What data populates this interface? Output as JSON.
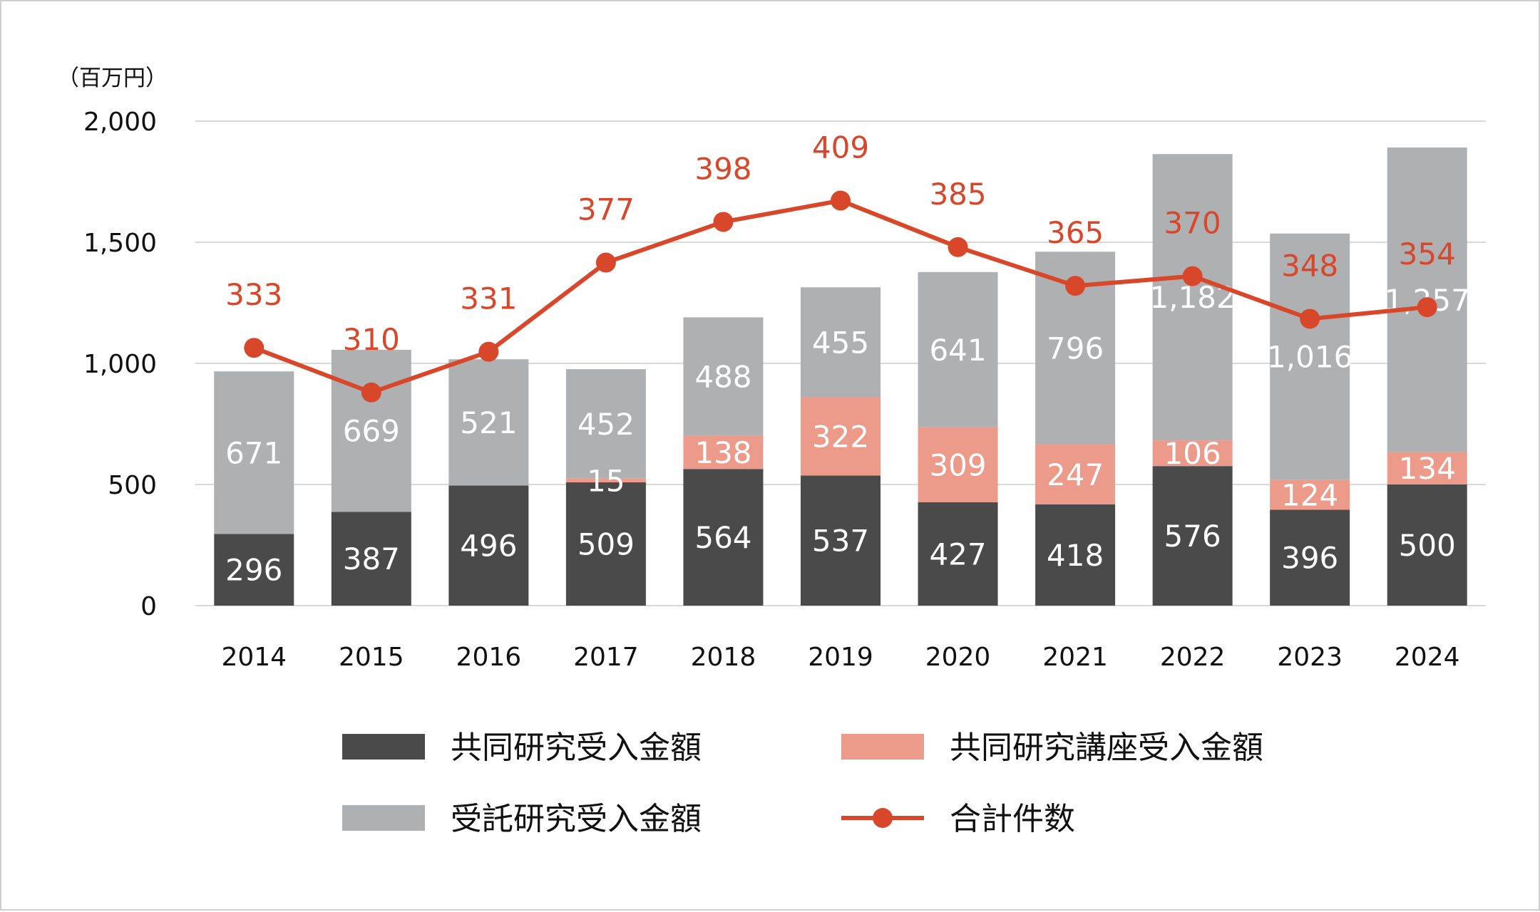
{
  "chart_data": {
    "type": "bar",
    "stacked": true,
    "y_unit_label": "（百万円）",
    "ylim": [
      0,
      2000
    ],
    "yticks": [
      0,
      500,
      1000,
      1500,
      2000
    ],
    "ytick_labels": [
      "0",
      "500",
      "1,000",
      "1,500",
      "2,000"
    ],
    "grid": true,
    "legend_position": "bottom",
    "categories": [
      "2014",
      "2015",
      "2016",
      "2017",
      "2018",
      "2019",
      "2020",
      "2021",
      "2022",
      "2023",
      "2024"
    ],
    "series": [
      {
        "name": "共同研究受入金額",
        "type": "bar",
        "color": "#4a4a4a",
        "values": [
          296,
          387,
          496,
          509,
          564,
          537,
          427,
          418,
          576,
          396,
          500
        ],
        "labels": [
          "296",
          "387",
          "496",
          "509",
          "564",
          "537",
          "427",
          "418",
          "576",
          "396",
          "500"
        ]
      },
      {
        "name": "共同研究講座受入金額",
        "type": "bar",
        "color": "#ec9a8a",
        "values": [
          0,
          0,
          0,
          15,
          138,
          322,
          309,
          247,
          106,
          124,
          134
        ],
        "labels": [
          "",
          "",
          "",
          "15",
          "138",
          "322",
          "309",
          "247",
          "106",
          "124",
          "134"
        ]
      },
      {
        "name": "受託研究受入金額",
        "type": "bar",
        "color": "#aeb0b2",
        "values": [
          671,
          669,
          521,
          452,
          488,
          455,
          641,
          796,
          1182,
          1016,
          1257
        ],
        "labels": [
          "671",
          "669",
          "521",
          "452",
          "488",
          "455",
          "641",
          "796",
          "1,182",
          "1,016",
          "1,257"
        ]
      },
      {
        "name": "合計件数",
        "type": "line",
        "color": "#d9472b",
        "values": [
          333,
          310,
          331,
          377,
          398,
          409,
          385,
          365,
          370,
          348,
          354
        ],
        "labels": [
          "333",
          "310",
          "331",
          "377",
          "398",
          "409",
          "385",
          "365",
          "370",
          "348",
          "354"
        ]
      }
    ]
  }
}
